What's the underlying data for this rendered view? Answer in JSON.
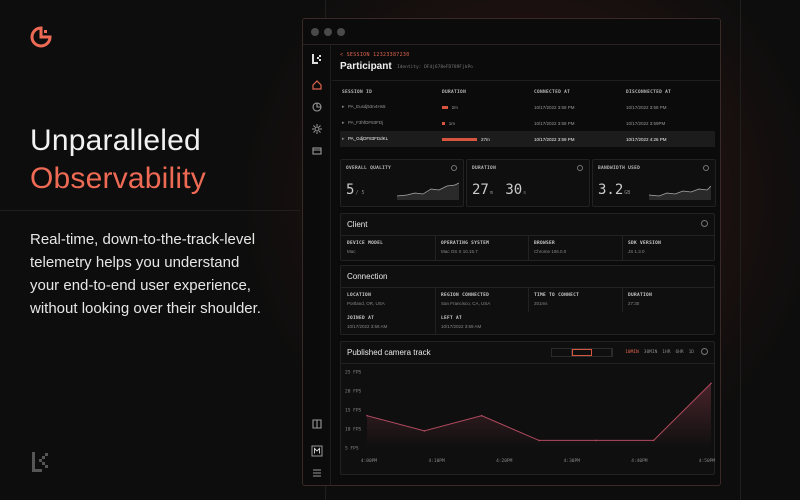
{
  "hero": {
    "line1": "Unparalleled",
    "line2": "Observability",
    "body": "Real-time, down-to-the-track-level telemetry helps you understand your end-to-end user experience, without looking over their shoulder."
  },
  "app": {
    "breadcrumb": "< SESSION 12323387230",
    "title": "Participant",
    "identity": "Identity: DFdj678eFD789FjkPo",
    "table": {
      "headers": [
        "SESSION ID",
        "DURATION",
        "CONNECTED AT",
        "DISCONNECTED AT"
      ],
      "rows": [
        {
          "id": "PA_Eusdj53n4Hs5",
          "duration": "2m",
          "duration_fraction": 0.08,
          "connected": "10/17/2022 3:58 PM",
          "disconnected": "10/17/2022 3:58 PM",
          "active": false
        },
        {
          "id": "PA_F3hfDF83FDj",
          "duration": "1m",
          "duration_fraction": 0.04,
          "connected": "10/17/2022 3:58 PM",
          "disconnected": "10/17/2022 3:59PM",
          "active": false
        },
        {
          "id": "PA_GdjDF83FDdKL",
          "duration": "27m",
          "duration_fraction": 0.5,
          "connected": "10/17/2022 3:59 PM",
          "disconnected": "10/17/2022 4:26 PM",
          "active": true
        }
      ]
    },
    "metrics": {
      "quality": {
        "label": "OVERALL QUALITY",
        "value": "5",
        "unit": "/ 5"
      },
      "duration": {
        "label": "DURATION",
        "minutes": "27",
        "m_unit": "m",
        "seconds": "30",
        "s_unit": "s"
      },
      "bandwidth": {
        "label": "BANDWIDTH USED",
        "value": "3.2",
        "unit": "GB"
      }
    },
    "client": {
      "title": "Client",
      "fields": [
        {
          "label": "DEVICE MODEL",
          "value": "Mac"
        },
        {
          "label": "OPERATING SYSTEM",
          "value": "Mac OS X 10.15.7"
        },
        {
          "label": "BROWSER",
          "value": "Chrome 106.0.0"
        },
        {
          "label": "SDK VERSION",
          "value": "JS 1.3.0"
        }
      ]
    },
    "connection": {
      "title": "Connection",
      "fields": [
        {
          "label": "LOCATION",
          "value": "Portland, OR, USA"
        },
        {
          "label": "REGION CONNECTED",
          "value": "San Francisco, CA, USA"
        },
        {
          "label": "TIME TO CONNECT",
          "value": "201ms"
        },
        {
          "label": "DURATION",
          "value": "27:30"
        },
        {
          "label": "JOINED AT",
          "value": "10/17/2022 3:58 AM"
        },
        {
          "label": "LEFT AT",
          "value": "10/17/2022 3:59 AM"
        }
      ]
    },
    "camera": {
      "title": "Published camera track",
      "ranges": [
        "10MIN",
        "30MIN",
        "1HR",
        "6HR",
        "1D"
      ],
      "active_range": "10MIN"
    }
  },
  "chart_data": {
    "type": "area",
    "title": "Published camera track",
    "x_ticks": [
      "4:00PM",
      "4:10PM",
      "4:20PM",
      "4:30PM",
      "4:40PM",
      "4:50PM"
    ],
    "y_ticks": [
      "25 FPS",
      "20 FPS",
      "15 FPS",
      "10 FPS",
      "5 FPS"
    ],
    "ylim": [
      5,
      25
    ],
    "x": [
      0,
      1,
      2,
      3,
      4,
      5,
      6
    ],
    "values": [
      13.5,
      9.5,
      13.5,
      7,
      7,
      7,
      22
    ],
    "color": "#b04a5e",
    "grid": false
  },
  "colors": {
    "accent": "#ee6a55",
    "bar": "#d5553f"
  }
}
